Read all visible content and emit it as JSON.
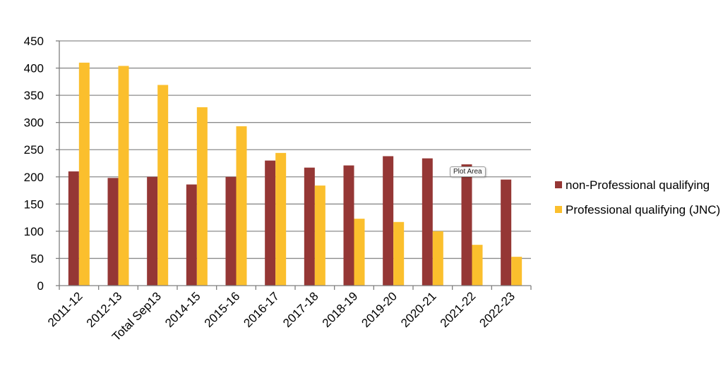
{
  "chart_data": {
    "type": "bar",
    "categories": [
      "2011-12",
      "2012-13",
      "Total Sep13",
      "2014-15",
      "2015-16",
      "2016-17",
      "2017-18",
      "2018-19",
      "2019-20",
      "2020-21",
      "2021-22",
      "2022-23"
    ],
    "series": [
      {
        "name": "non-Professional qualifying",
        "color": "#953735",
        "values": [
          210,
          198,
          200,
          186,
          200,
          230,
          217,
          221,
          238,
          234,
          223,
          195
        ]
      },
      {
        "name": "Professional qualifying (JNC)",
        "color": "#fbbf2d",
        "values": [
          410,
          404,
          369,
          328,
          293,
          244,
          184,
          123,
          117,
          100,
          75,
          53
        ]
      }
    ],
    "ylim": [
      0,
      450
    ],
    "yticks": [
      0,
      50,
      100,
      150,
      200,
      250,
      300,
      350,
      400,
      450
    ],
    "grid": true,
    "legend_position": "right"
  },
  "tooltip": {
    "text": "Plot Area"
  }
}
